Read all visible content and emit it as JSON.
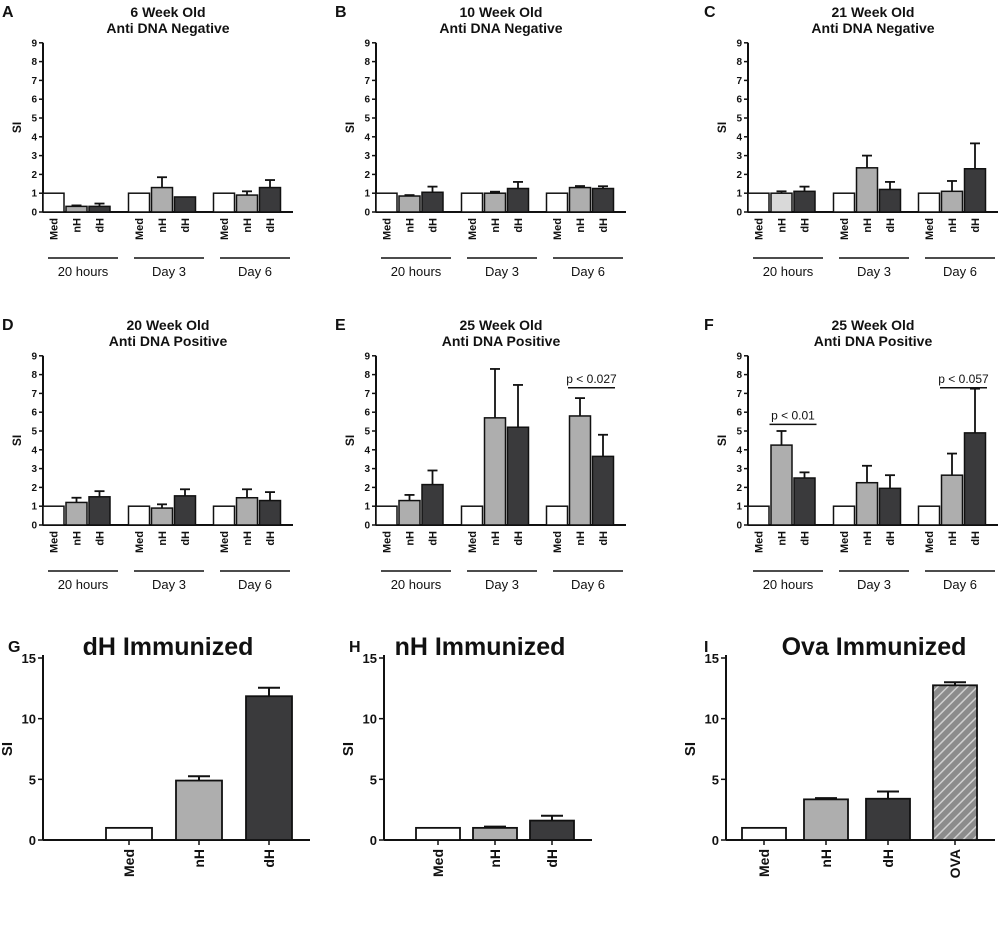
{
  "colors": {
    "Med": "#ffffff",
    "nH": "#aeaeae",
    "nH_light": "#d9d9d9",
    "dH": "#3a3a3c",
    "OVA": "#8c8c8c",
    "axis": "#111111"
  },
  "chart_data": [
    {
      "panel": "A",
      "type": "bar",
      "title": [
        "6 Week Old",
        "Anti DNA Negative"
      ],
      "ylabel": "SI",
      "ylim": [
        0,
        9
      ],
      "yticks": [
        "0",
        "1",
        "2",
        "3",
        "4",
        "5",
        "6",
        "7",
        "8",
        "9"
      ],
      "categories": [
        "Med",
        "nH",
        "dH",
        "Med",
        "nH",
        "dH",
        "Med",
        "nH",
        "dH"
      ],
      "groups": [
        "20 hours",
        "Day 3",
        "Day 6"
      ],
      "values": [
        1,
        0.3,
        0.3,
        1,
        1.3,
        0.8,
        1,
        0.9,
        1.3
      ],
      "errors": [
        0,
        0.05,
        0.15,
        0,
        0.55,
        0,
        0,
        0.2,
        0.4
      ],
      "annotations": []
    },
    {
      "panel": "B",
      "type": "bar",
      "title": [
        "10 Week Old",
        "Anti DNA Negative"
      ],
      "ylabel": "SI",
      "ylim": [
        0,
        9
      ],
      "yticks": [
        "0",
        "1",
        "2",
        "3",
        "4",
        "5",
        "6",
        "7",
        "8",
        "9"
      ],
      "categories": [
        "Med",
        "nH",
        "dH",
        "Med",
        "nH",
        "dH",
        "Med",
        "nH",
        "dH"
      ],
      "groups": [
        "20 hours",
        "Day 3",
        "Day 6"
      ],
      "values": [
        1,
        0.85,
        1.05,
        1,
        1.0,
        1.25,
        1,
        1.3,
        1.25
      ],
      "errors": [
        0,
        0.05,
        0.3,
        0,
        0.08,
        0.35,
        0,
        0.08,
        0.12
      ],
      "annotations": []
    },
    {
      "panel": "C",
      "type": "bar",
      "title": [
        "21 Week Old",
        "Anti DNA Negative"
      ],
      "ylabel": "SI",
      "ylim": [
        0,
        9
      ],
      "yticks": [
        "0",
        "1",
        "2",
        "3",
        "4",
        "5",
        "6",
        "7",
        "8",
        "9"
      ],
      "categories": [
        "Med",
        "nH",
        "dH",
        "Med",
        "nH",
        "dH",
        "Med",
        "nH",
        "dH"
      ],
      "groups": [
        "20 hours",
        "Day 3",
        "Day 6"
      ],
      "values": [
        1,
        1.0,
        1.1,
        1,
        2.35,
        1.2,
        1,
        1.1,
        2.3
      ],
      "errors": [
        0,
        0.1,
        0.25,
        0,
        0.65,
        0.4,
        0,
        0.55,
        1.35
      ],
      "annotations": []
    },
    {
      "panel": "D",
      "type": "bar",
      "title": [
        "20 Week Old",
        "Anti DNA Positive"
      ],
      "ylabel": "SI",
      "ylim": [
        0,
        9
      ],
      "yticks": [
        "0",
        "1",
        "2",
        "3",
        "4",
        "5",
        "6",
        "7",
        "8",
        "9"
      ],
      "categories": [
        "Med",
        "nH",
        "dH",
        "Med",
        "nH",
        "dH",
        "Med",
        "nH",
        "dH"
      ],
      "groups": [
        "20 hours",
        "Day 3",
        "Day 6"
      ],
      "values": [
        1,
        1.2,
        1.5,
        1,
        0.9,
        1.55,
        1,
        1.45,
        1.3
      ],
      "errors": [
        0,
        0.25,
        0.3,
        0,
        0.2,
        0.35,
        0,
        0.45,
        0.45
      ],
      "annotations": []
    },
    {
      "panel": "E",
      "type": "bar",
      "title": [
        "25 Week Old",
        "Anti DNA Positive"
      ],
      "ylabel": "SI",
      "ylim": [
        0,
        9
      ],
      "yticks": [
        "0",
        "1",
        "2",
        "3",
        "4",
        "5",
        "6",
        "7",
        "8",
        "9"
      ],
      "categories": [
        "Med",
        "nH",
        "dH",
        "Med",
        "nH",
        "dH",
        "Med",
        "nH",
        "dH"
      ],
      "groups": [
        "20 hours",
        "Day 3",
        "Day 6"
      ],
      "values": [
        1,
        1.3,
        2.15,
        1,
        5.7,
        5.2,
        1,
        5.8,
        3.65
      ],
      "errors": [
        0,
        0.3,
        0.75,
        0,
        2.6,
        2.25,
        0,
        0.95,
        1.15
      ],
      "annotations": [
        {
          "text": "p < 0.027",
          "from": 7,
          "to": 8,
          "y": 7.3
        }
      ]
    },
    {
      "panel": "F",
      "type": "bar",
      "title": [
        "25 Week Old",
        "Anti DNA Positive"
      ],
      "ylabel": "SI",
      "ylim": [
        0,
        9
      ],
      "yticks": [
        "0",
        "1",
        "2",
        "3",
        "4",
        "5",
        "6",
        "7",
        "8",
        "9"
      ],
      "categories": [
        "Med",
        "nH",
        "dH",
        "Med",
        "nH",
        "dH",
        "Med",
        "nH",
        "dH"
      ],
      "groups": [
        "20 hours",
        "Day 3",
        "Day 6"
      ],
      "values": [
        1,
        4.25,
        2.5,
        1,
        2.25,
        1.95,
        1,
        2.65,
        4.9
      ],
      "errors": [
        0,
        0.75,
        0.3,
        0,
        0.9,
        0.7,
        0,
        1.15,
        2.35
      ],
      "annotations": [
        {
          "text": "p < 0.01",
          "from": 1,
          "to": 2,
          "y": 5.35
        },
        {
          "text": "p < 0.057",
          "from": 7,
          "to": 8,
          "y": 7.3
        }
      ]
    },
    {
      "panel": "G",
      "type": "bar",
      "title": [
        "dH Immunized"
      ],
      "ylabel": "SI",
      "ylim": [
        0,
        15
      ],
      "yticks": [
        "0",
        "5",
        "10",
        "15"
      ],
      "categories": [
        "Med",
        "nH",
        "dH"
      ],
      "values": [
        1,
        4.9,
        11.85
      ],
      "errors": [
        0,
        0.35,
        0.7
      ]
    },
    {
      "panel": "H",
      "type": "bar",
      "title": [
        "nH Immunized"
      ],
      "ylabel": "SI",
      "ylim": [
        0,
        15
      ],
      "yticks": [
        "0",
        "5",
        "10",
        "15"
      ],
      "categories": [
        "Med",
        "nH",
        "dH"
      ],
      "values": [
        1,
        1.0,
        1.6
      ],
      "errors": [
        0,
        0.1,
        0.4
      ]
    },
    {
      "panel": "I",
      "type": "bar",
      "title": [
        "Ova Immunized"
      ],
      "ylabel": "SI",
      "ylim": [
        0,
        15
      ],
      "yticks": [
        "0",
        "5",
        "10",
        "15"
      ],
      "categories": [
        "Med",
        "nH",
        "dH",
        "OVA"
      ],
      "values": [
        1,
        3.35,
        3.4,
        12.75
      ],
      "errors": [
        0,
        0.1,
        0.6,
        0.25
      ]
    }
  ]
}
